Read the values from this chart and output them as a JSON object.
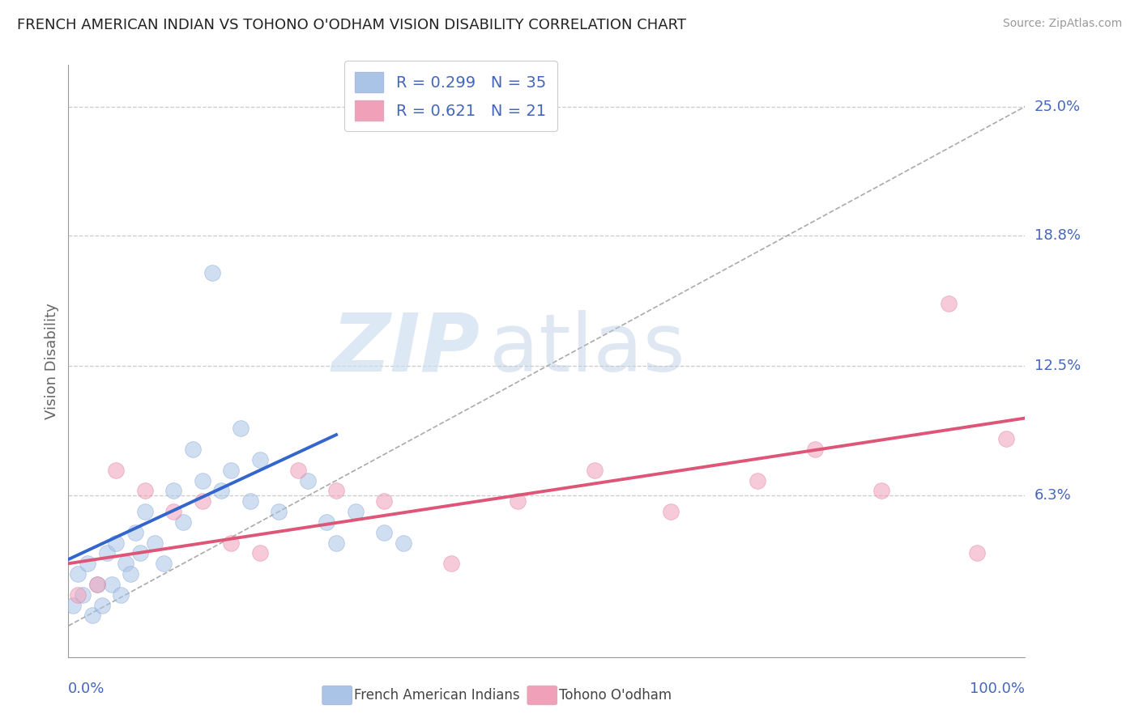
{
  "title": "FRENCH AMERICAN INDIAN VS TOHONO O'ODHAM VISION DISABILITY CORRELATION CHART",
  "source": "Source: ZipAtlas.com",
  "ylabel": "Vision Disability",
  "xlim": [
    0,
    100
  ],
  "ylim": [
    -1.5,
    27
  ],
  "ytick_labels": [
    "6.3%",
    "12.5%",
    "18.8%",
    "25.0%"
  ],
  "ytick_values": [
    6.3,
    12.5,
    18.8,
    25.0
  ],
  "blue_x": [
    0.5,
    1.0,
    1.5,
    2.0,
    2.5,
    3.0,
    3.5,
    4.0,
    4.5,
    5.0,
    5.5,
    6.0,
    6.5,
    7.0,
    7.5,
    8.0,
    9.0,
    10.0,
    11.0,
    12.0,
    13.0,
    14.0,
    15.0,
    16.0,
    17.0,
    18.0,
    19.0,
    20.0,
    22.0,
    25.0,
    27.0,
    28.0,
    30.0,
    33.0,
    35.0
  ],
  "blue_y": [
    1.0,
    2.5,
    1.5,
    3.0,
    0.5,
    2.0,
    1.0,
    3.5,
    2.0,
    4.0,
    1.5,
    3.0,
    2.5,
    4.5,
    3.5,
    5.5,
    4.0,
    3.0,
    6.5,
    5.0,
    8.5,
    7.0,
    17.0,
    6.5,
    7.5,
    9.5,
    6.0,
    8.0,
    5.5,
    7.0,
    5.0,
    4.0,
    5.5,
    4.5,
    4.0
  ],
  "pink_x": [
    1.0,
    3.0,
    5.0,
    8.0,
    11.0,
    14.0,
    17.0,
    20.0,
    24.0,
    28.0,
    33.0,
    40.0,
    47.0,
    55.0,
    63.0,
    72.0,
    78.0,
    85.0,
    92.0,
    95.0,
    98.0
  ],
  "pink_y": [
    1.5,
    2.0,
    7.5,
    6.5,
    5.5,
    6.0,
    4.0,
    3.5,
    7.5,
    6.5,
    6.0,
    3.0,
    6.0,
    7.5,
    5.5,
    7.0,
    8.5,
    6.5,
    15.5,
    3.5,
    9.0
  ],
  "blue_line_x": [
    0,
    28
  ],
  "blue_line_y": [
    3.2,
    9.2
  ],
  "pink_line_x": [
    0,
    100
  ],
  "pink_line_y": [
    3.0,
    10.0
  ],
  "dashed_line_x": [
    0,
    100
  ],
  "dashed_line_y": [
    0,
    25
  ],
  "watermark_zip": "ZIP",
  "watermark_atlas": "atlas",
  "background_color": "#ffffff",
  "scatter_blue_color": "#aac4e8",
  "scatter_pink_color": "#f0a0b8",
  "scatter_blue_edge": "#7799cc",
  "scatter_pink_edge": "#e07090",
  "scatter_size": 200,
  "scatter_alpha": 0.55,
  "blue_line_color": "#3366cc",
  "pink_line_color": "#dd5577",
  "dashed_line_color": "#aaaaaa",
  "grid_color": "#cccccc",
  "legend_label_blue": "R = 0.299   N = 35",
  "legend_label_pink": "R = 0.621   N = 21",
  "legend_color": "#4466bb",
  "bottom_label_blue": "French American Indians",
  "bottom_label_pink": "Tohono O'odham"
}
